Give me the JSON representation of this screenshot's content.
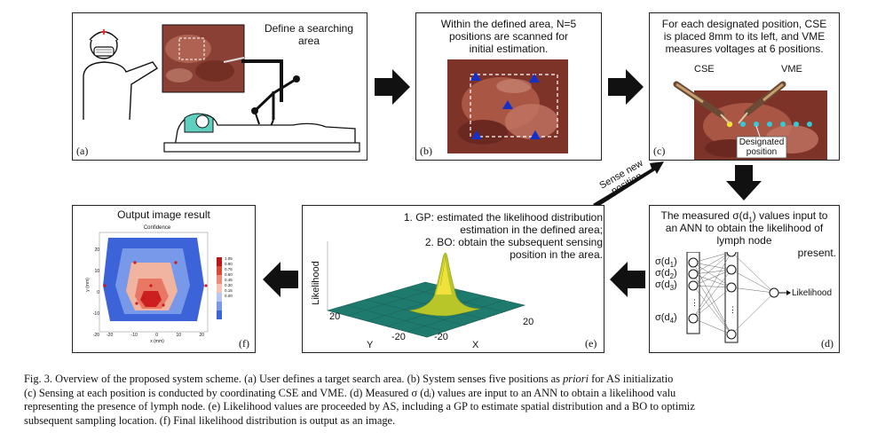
{
  "panels": {
    "a": {
      "label": "(a)",
      "text": "Define a searching area"
    },
    "b": {
      "label": "(b)",
      "text_lines": [
        "Within the defined area, N=5",
        "positions are scanned for",
        "initial estimation."
      ]
    },
    "c": {
      "label": "(c)",
      "text_lines": [
        "For each designated position, CSE",
        "is placed 8mm to its left, and VME",
        "measures voltages at 6 positions."
      ],
      "cse": "CSE",
      "vme": "VME",
      "designated": [
        "Designated",
        "position"
      ]
    },
    "d": {
      "label": "(d)",
      "text_lines": [
        "The measured σ(d",
        ") values input to",
        "an ANN to obtain the likelihood of",
        "lymph node",
        "present."
      ],
      "inputs": [
        "σ(d",
        "σ(d",
        "σ(d",
        "σ(d"
      ],
      "input_subs": [
        "1",
        "2",
        "3",
        "4"
      ],
      "output": "Likelihood"
    },
    "e": {
      "label": "(e)",
      "text_lines": [
        "1. GP: estimated the likelihood distribution",
        "estimation in the defined area;",
        "2. BO: obtain the subsequent sensing",
        "position in the area."
      ],
      "zlabel": "Likelihood",
      "xlabel": "X",
      "ylabel": "Y",
      "y_ticks": [
        "20",
        "-20"
      ],
      "x_ticks": [
        "-20",
        "20"
      ]
    },
    "f": {
      "label": "(f)",
      "title": "Output image result",
      "inner_title": "Confidence",
      "colorbar_ticks": [
        "1.05",
        "0.90",
        "0.75",
        "0.60",
        "0.45",
        "0.30",
        "0.15",
        "0.00"
      ],
      "y_ticks": [
        "20",
        "10",
        "0",
        "-10",
        "-20"
      ],
      "x_ticks": [
        "-20",
        "-10",
        "0",
        "10",
        "20"
      ],
      "xaxis": "x (mm)",
      "yaxis": "y (mm)"
    }
  },
  "sense_label": [
    "Sense new",
    "position"
  ],
  "colors": {
    "arrow": "#111111",
    "marker": "#1530c8",
    "tissue": "#8a3a2e"
  },
  "caption": {
    "line1_pre": "Fig. 3.    Overview of the proposed system scheme. (a) User defines a target search area. (b) System senses five positions as ",
    "line1_ital": "priori",
    "line1_post": " for AS initializatio",
    "line2": "(c) Sensing at each position is conducted by coordinating CSE and VME. (d) Measured σ (dᵢ) values are input to an ANN to obtain a likelihood valu",
    "line3": "representing the presence of lymph node. (e) Likelihood values are proceeded by AS, including a GP to estimate spatial distribution and a BO to optimiz",
    "line4": "subsequent sampling location. (f) Final likelihood distribution is output as an image."
  }
}
